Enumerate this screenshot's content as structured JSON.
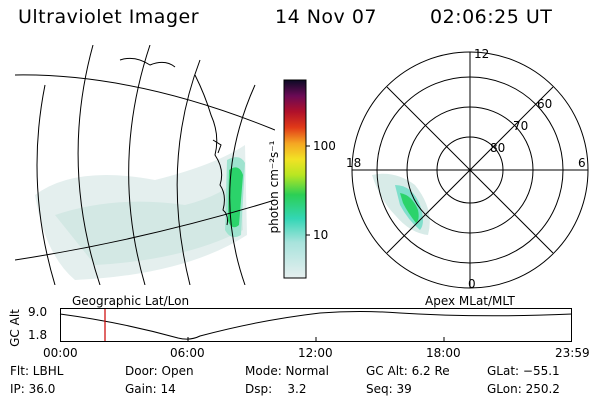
{
  "header": {
    "instrument": "Ultraviolet Imager",
    "date": "14 Nov 07",
    "time": "02:06:25 UT"
  },
  "colorbar": {
    "unit_label": "photon cm⁻²s⁻¹",
    "ticks": [
      "100",
      "10"
    ]
  },
  "polar_plot": {
    "mlt_labels": [
      "12",
      "18",
      "6",
      "0"
    ],
    "mlat_labels": [
      "60",
      "70",
      "80"
    ]
  },
  "map_titles": {
    "left": "Geographic Lat/Lon",
    "right": "Apex MLat/MLT"
  },
  "orbit_plot": {
    "ylabel": "GC Alt",
    "yticks": [
      "9.0",
      "1.8"
    ],
    "xticks": [
      "00:00",
      "06:00",
      "12:00",
      "18:00",
      "23:59"
    ],
    "marker_time": "02:06"
  },
  "info": {
    "flt": "Flt: LBHL",
    "ip": "IP: 36.0",
    "door": "Door: Open",
    "gain": "Gain: 14",
    "mode": "Mode: Normal",
    "dsp": "Dsp:    3.2",
    "gcalt": "GC Alt: 6.2 Re",
    "seq": "Seq: 39",
    "glat": "GLat: −55.1",
    "glon": "GLon: 250.2"
  },
  "colors": {
    "marker": "#cc0000",
    "emission_pale": "#cfe6e2",
    "emission_mid": "#7fd9c8",
    "emission_bright": "#2bd36a"
  }
}
